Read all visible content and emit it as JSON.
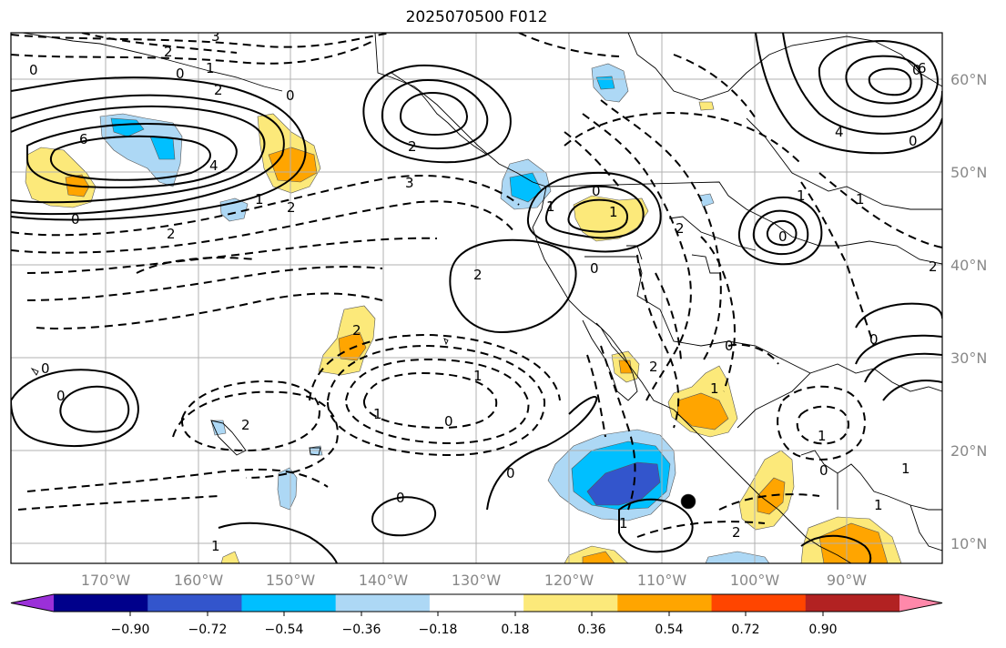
{
  "map": {
    "title": "2025070500 F012",
    "lon_labels": [
      "170°W",
      "160°W",
      "150°W",
      "140°W",
      "130°W",
      "120°W",
      "110°W",
      "100°W",
      "90°W"
    ],
    "lat_labels": [
      "60°N",
      "50°N",
      "40°N",
      "30°N",
      "20°N",
      "10°N"
    ],
    "colorbar": {
      "tick_labels": [
        "−0.90",
        "−0.72",
        "−0.54",
        "−0.36",
        "−0.18",
        "0.18",
        "0.36",
        "0.54",
        "0.72",
        "0.90"
      ],
      "colors": [
        "#9b30d9",
        "#00008b",
        "#3355cc",
        "#00bfff",
        "#add8f5",
        "#ffffff",
        "#fce97a",
        "#ffa500",
        "#ff4500",
        "#b22222",
        "#ff88aa"
      ]
    },
    "contour_labels": [
      "0",
      "2",
      "3",
      "1",
      "0",
      "2",
      "6",
      "4",
      "0",
      "2",
      "1",
      "2",
      "0",
      "2",
      "3",
      "2",
      "0",
      "4",
      "0",
      "0",
      "1",
      "1",
      "2",
      "0",
      "1",
      "2",
      "1",
      "1",
      "0",
      "2",
      "0",
      "0",
      "0",
      "0",
      "1",
      "1",
      "1",
      "0",
      "0",
      "1",
      "2",
      "1",
      "1",
      "0",
      "6",
      "0",
      "2",
      "2",
      "1"
    ],
    "colors": {
      "contour": "#000000",
      "grid": "#b0b0b0",
      "coast": "#000000",
      "tick_text": "#888888"
    }
  }
}
